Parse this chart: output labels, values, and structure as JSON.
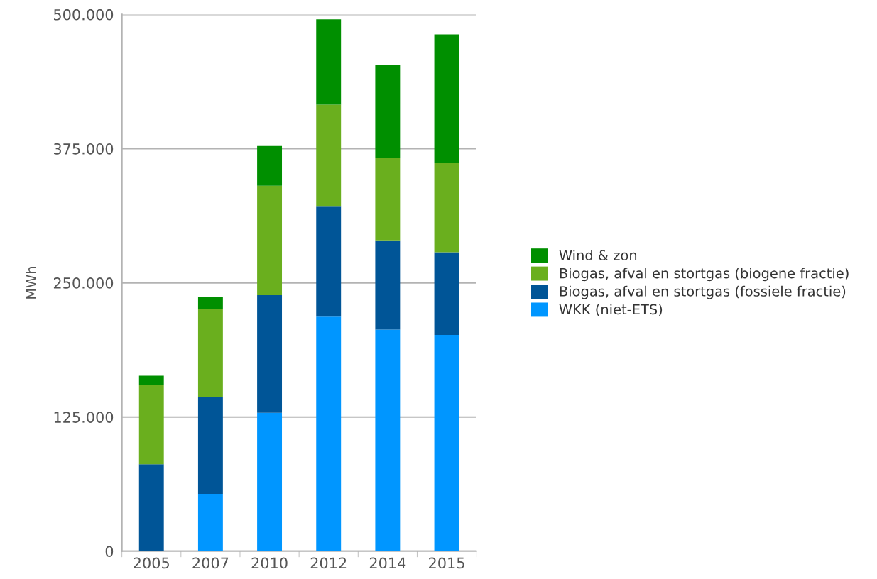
{
  "chart_data": {
    "type": "bar",
    "stacked": true,
    "ylabel": "MWh",
    "categories": [
      "2005",
      "2007",
      "2010",
      "2012",
      "2014",
      "2015"
    ],
    "series": [
      {
        "name": "WKK (niet-ETS)",
        "color": "#0096ff",
        "values": [
          0,
          53500,
          129000,
          218500,
          206500,
          201500
        ]
      },
      {
        "name": "Biogas, afval en stortgas (fossiele fractie)",
        "color": "#005597",
        "values": [
          81000,
          90000,
          109500,
          102500,
          83000,
          77000
        ]
      },
      {
        "name": "Biogas, afval en stortgas (biogene fractie)",
        "color": "#6aaf1e",
        "values": [
          74000,
          82000,
          102000,
          95000,
          77000,
          83000
        ]
      },
      {
        "name": "Wind & zon",
        "color": "#008f00",
        "values": [
          8500,
          11000,
          37000,
          79500,
          86500,
          120000
        ]
      }
    ],
    "ylim": [
      0,
      500000
    ],
    "yticks": [
      {
        "value": 0,
        "label": "0"
      },
      {
        "value": 125000,
        "label": "125.000"
      },
      {
        "value": 250000,
        "label": "250.000"
      },
      {
        "value": 375000,
        "label": "375.000"
      },
      {
        "value": 500000,
        "label": "500.000"
      }
    ],
    "grid": "y",
    "legend": "right"
  }
}
